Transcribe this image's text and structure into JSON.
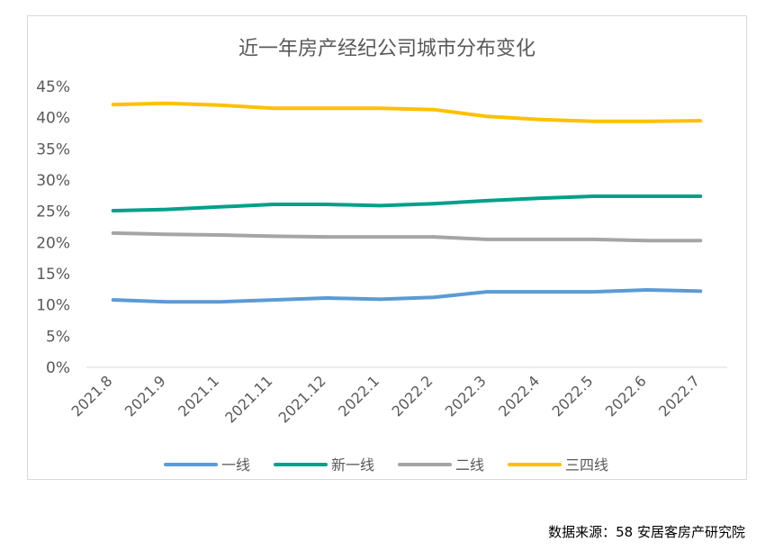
{
  "chart_data": {
    "type": "line",
    "title": "近一年房产经纪公司城市分布变化",
    "categories": [
      "2021.8",
      "2021.9",
      "2021.1",
      "2021.11",
      "2021.12",
      "2022.1",
      "2022.2",
      "2022.3",
      "2022.4",
      "2022.5",
      "2022.6",
      "2022.7"
    ],
    "y_tick_labels": [
      "0%",
      "5%",
      "10%",
      "15%",
      "20%",
      "25%",
      "30%",
      "35%",
      "40%",
      "45%"
    ],
    "ylim": [
      0,
      45
    ],
    "y_unit": "%",
    "grid": false,
    "legend_position": "bottom",
    "series": [
      {
        "name": "一线",
        "color": "#5b9bd5",
        "values": [
          10.8,
          10.5,
          10.5,
          10.8,
          11.1,
          10.9,
          11.2,
          12.1,
          12.1,
          12.1,
          12.4,
          12.2
        ]
      },
      {
        "name": "新一线",
        "color": "#00a08a",
        "values": [
          25.1,
          25.3,
          25.7,
          26.1,
          26.1,
          25.9,
          26.2,
          26.7,
          27.1,
          27.4,
          27.4,
          27.4
        ]
      },
      {
        "name": "二线",
        "color": "#a5a5a5",
        "values": [
          21.5,
          21.3,
          21.2,
          21.0,
          20.9,
          20.9,
          20.9,
          20.5,
          20.5,
          20.5,
          20.3,
          20.3
        ]
      },
      {
        "name": "三四线",
        "color": "#ffc000",
        "values": [
          42.1,
          42.3,
          42.0,
          41.5,
          41.5,
          41.5,
          41.3,
          40.2,
          39.7,
          39.4,
          39.4,
          39.5
        ]
      }
    ]
  },
  "source_note": "数据来源：58 安居客房产研究院"
}
